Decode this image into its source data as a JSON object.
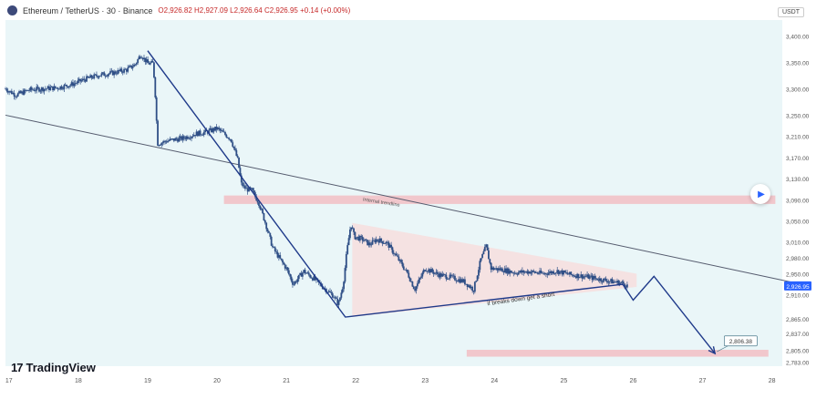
{
  "header": {
    "symbol": "Ethereum / TetherUS · 30 · Binance",
    "ohlc": "O2,926.82 H2,927.09 L2,926.64 C2,926.95 +0.14 (+0.00%)",
    "currency": "USDT"
  },
  "branding": {
    "logo_text": "TradingView",
    "logo_mark": "17"
  },
  "colors": {
    "background_shaded": "#eaf6f8",
    "candle": "#2f4f86",
    "resistance_band": "#f2c2c6",
    "triangle_fill": "#f7dede",
    "trendline": "#555b6e",
    "arrow": "#1f3a8a",
    "price_tag": "#2962ff"
  },
  "annotations": {
    "trendline_label": "Internal trendline",
    "breakdown_label": "if breaks down get a short",
    "target_label": "2,806.38",
    "current_price": "2,926.95"
  },
  "chart_data": {
    "type": "candlestick",
    "x_ticks": [
      "17",
      "18",
      "19",
      "20",
      "21",
      "22",
      "23",
      "24",
      "25",
      "26",
      "27",
      "28"
    ],
    "y_ticks": [
      3400,
      3350,
      3300,
      3250,
      3210,
      3170,
      3130,
      3090,
      3050,
      3010,
      2980,
      2950,
      2910,
      2865,
      2837,
      2805,
      2783
    ],
    "y_tick_labels": [
      "3,400.00",
      "3,350.00",
      "3,300.00",
      "3,250.00",
      "3,210.00",
      "3,170.00",
      "3,130.00",
      "3,090.00",
      "3,050.00",
      "3,010.00",
      "2,980.00",
      "2,950.00",
      "2,910.00",
      "2,865.00",
      "2,837.00",
      "2,805.00",
      "2,783.00"
    ],
    "ylim": [
      2775,
      3430
    ],
    "xlim": [
      16.95,
      28.15
    ],
    "price_path": [
      [
        16.95,
        3300
      ],
      [
        17.1,
        3288
      ],
      [
        17.3,
        3298
      ],
      [
        17.5,
        3300
      ],
      [
        17.7,
        3302
      ],
      [
        17.9,
        3308
      ],
      [
        18.1,
        3318
      ],
      [
        18.3,
        3326
      ],
      [
        18.5,
        3330
      ],
      [
        18.7,
        3336
      ],
      [
        18.82,
        3346
      ],
      [
        18.9,
        3365
      ],
      [
        19.0,
        3348
      ],
      [
        19.08,
        3348
      ],
      [
        19.12,
        3268
      ],
      [
        19.14,
        3196
      ],
      [
        19.2,
        3198
      ],
      [
        19.3,
        3202
      ],
      [
        19.5,
        3206
      ],
      [
        19.7,
        3215
      ],
      [
        19.85,
        3218
      ],
      [
        20.0,
        3225
      ],
      [
        20.2,
        3205
      ],
      [
        20.3,
        3165
      ],
      [
        20.35,
        3120
      ],
      [
        20.42,
        3110
      ],
      [
        20.5,
        3108
      ],
      [
        20.6,
        3085
      ],
      [
        20.7,
        3045
      ],
      [
        20.8,
        3000
      ],
      [
        20.92,
        2975
      ],
      [
        21.0,
        2960
      ],
      [
        21.1,
        2930
      ],
      [
        21.25,
        2955
      ],
      [
        21.4,
        2940
      ],
      [
        21.55,
        2922
      ],
      [
        21.68,
        2908
      ],
      [
        21.75,
        2892
      ],
      [
        21.82,
        2930
      ],
      [
        21.87,
        2990
      ],
      [
        21.93,
        3045
      ],
      [
        21.98,
        3020
      ],
      [
        22.1,
        3015
      ],
      [
        22.2,
        3005
      ],
      [
        22.3,
        3015
      ],
      [
        22.45,
        3008
      ],
      [
        22.6,
        2980
      ],
      [
        22.75,
        2950
      ],
      [
        22.85,
        2920
      ],
      [
        23.0,
        2960
      ],
      [
        23.2,
        2948
      ],
      [
        23.4,
        2942
      ],
      [
        23.55,
        2936
      ],
      [
        23.7,
        2920
      ],
      [
        23.8,
        2975
      ],
      [
        23.88,
        3002
      ],
      [
        23.95,
        2960
      ],
      [
        24.1,
        2958
      ],
      [
        24.3,
        2952
      ],
      [
        24.5,
        2954
      ],
      [
        24.7,
        2950
      ],
      [
        24.9,
        2955
      ],
      [
        25.1,
        2948
      ],
      [
        25.3,
        2945
      ],
      [
        25.5,
        2940
      ],
      [
        25.7,
        2935
      ],
      [
        25.85,
        2932
      ],
      [
        25.92,
        2927
      ]
    ],
    "resistance_zone": {
      "from": 3082,
      "to": 3098
    },
    "target_zone": {
      "from": 2793,
      "to": 2806
    },
    "internal_trendline": {
      "from": [
        16.95,
        3250
      ],
      "to": [
        28.5,
        2928
      ]
    },
    "wedge": {
      "upper": [
        [
          21.95,
          3046
        ],
        [
          26.05,
          2950
        ]
      ],
      "lower": [
        [
          21.95,
          2868
        ],
        [
          26.05,
          2925
        ]
      ]
    },
    "projection_arrow": [
      [
        19.0,
        3372
      ],
      [
        21.85,
        2868
      ],
      [
        25.85,
        2930
      ],
      [
        26.0,
        2900
      ],
      [
        26.3,
        2945
      ],
      [
        27.18,
        2799
      ]
    ],
    "target_value": 2806.38,
    "current_value": 2926.95
  }
}
